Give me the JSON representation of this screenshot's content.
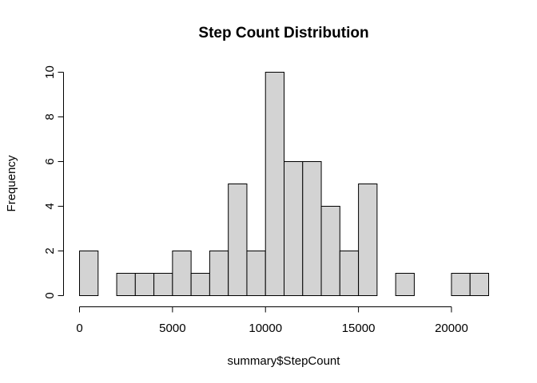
{
  "chart_data": {
    "type": "bar",
    "title": "Step Count Distribution",
    "xlabel": "summary$StepCount",
    "ylabel": "Frequency",
    "bin_width": 1000,
    "bins": [
      {
        "start": 0,
        "end": 1000,
        "count": 2
      },
      {
        "start": 1000,
        "end": 2000,
        "count": 0
      },
      {
        "start": 2000,
        "end": 3000,
        "count": 1
      },
      {
        "start": 3000,
        "end": 4000,
        "count": 1
      },
      {
        "start": 4000,
        "end": 5000,
        "count": 1
      },
      {
        "start": 5000,
        "end": 6000,
        "count": 2
      },
      {
        "start": 6000,
        "end": 7000,
        "count": 1
      },
      {
        "start": 7000,
        "end": 8000,
        "count": 2
      },
      {
        "start": 8000,
        "end": 9000,
        "count": 5
      },
      {
        "start": 9000,
        "end": 10000,
        "count": 2
      },
      {
        "start": 10000,
        "end": 11000,
        "count": 10
      },
      {
        "start": 11000,
        "end": 12000,
        "count": 6
      },
      {
        "start": 12000,
        "end": 13000,
        "count": 6
      },
      {
        "start": 13000,
        "end": 14000,
        "count": 4
      },
      {
        "start": 14000,
        "end": 15000,
        "count": 2
      },
      {
        "start": 15000,
        "end": 16000,
        "count": 5
      },
      {
        "start": 16000,
        "end": 17000,
        "count": 0
      },
      {
        "start": 17000,
        "end": 18000,
        "count": 1
      },
      {
        "start": 18000,
        "end": 19000,
        "count": 0
      },
      {
        "start": 19000,
        "end": 20000,
        "count": 0
      },
      {
        "start": 20000,
        "end": 21000,
        "count": 1
      },
      {
        "start": 21000,
        "end": 22000,
        "count": 1
      }
    ],
    "x_ticks": [
      "0",
      "5000",
      "10000",
      "15000",
      "20000"
    ],
    "y_ticks": [
      "0",
      "2",
      "4",
      "6",
      "8",
      "10"
    ],
    "xlim": [
      0,
      22000
    ],
    "ylim": [
      0,
      10
    ],
    "grid": false,
    "colors": {
      "bar_fill": "#d3d3d3",
      "bar_stroke": "#000000"
    }
  }
}
